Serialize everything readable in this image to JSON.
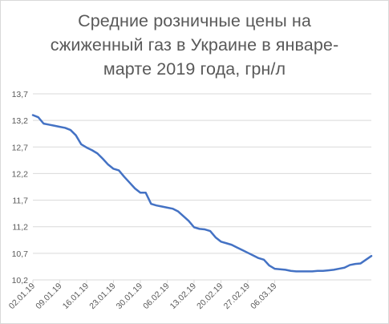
{
  "chart_data": {
    "type": "line",
    "title_lines": [
      "Средние розничные цены на",
      "сжиженный газ в Украине в январе-",
      "марте 2019 года, грн/л"
    ],
    "xlabel": "",
    "ylabel": "",
    "ylim": [
      10.2,
      13.7
    ],
    "yticks": [
      "13,7",
      "13,2",
      "12,7",
      "12,2",
      "11,7",
      "11,2",
      "10,7",
      "10,2"
    ],
    "ytick_values": [
      13.7,
      13.2,
      12.7,
      12.2,
      11.7,
      11.2,
      10.7,
      10.2
    ],
    "xtick_labels": [
      "02.01.19",
      "09.01.19",
      "16.01.19",
      "23.01.19",
      "30.01.19",
      "06.02.19",
      "13.02.19",
      "20.02.19",
      "27.02.19",
      "06.03.19"
    ],
    "grid": "horizontal",
    "legend": "none",
    "line_color": "#4472c4",
    "grid_color": "#d9d9d9",
    "series": [
      {
        "x": [
          0,
          1,
          2,
          3,
          4,
          5,
          6,
          7,
          8,
          9,
          10,
          11,
          12,
          13,
          14,
          15,
          16,
          17,
          18,
          19,
          20,
          21,
          22,
          23,
          24,
          25,
          26,
          27,
          28,
          29,
          30,
          31,
          32,
          33,
          34,
          35,
          36,
          37,
          38,
          39,
          40,
          41,
          42,
          43,
          44,
          45,
          46,
          47,
          48,
          49,
          50,
          51,
          52,
          53,
          54,
          55,
          56,
          57,
          58,
          59,
          60,
          61,
          62,
          63
        ],
        "values": [
          13.3,
          13.26,
          13.14,
          13.12,
          13.1,
          13.08,
          13.06,
          13.02,
          12.92,
          12.75,
          12.69,
          12.64,
          12.58,
          12.48,
          12.37,
          12.29,
          12.26,
          12.14,
          12.03,
          11.92,
          11.84,
          11.84,
          11.63,
          11.6,
          11.58,
          11.56,
          11.54,
          11.49,
          11.4,
          11.31,
          11.19,
          11.16,
          11.15,
          11.12,
          11.0,
          10.92,
          10.89,
          10.86,
          10.81,
          10.76,
          10.71,
          10.66,
          10.61,
          10.58,
          10.47,
          10.41,
          10.4,
          10.39,
          10.37,
          10.36,
          10.36,
          10.36,
          10.36,
          10.37,
          10.37,
          10.38,
          10.39,
          10.41,
          10.43,
          10.48,
          10.5,
          10.51,
          10.58,
          10.65
        ]
      }
    ]
  }
}
